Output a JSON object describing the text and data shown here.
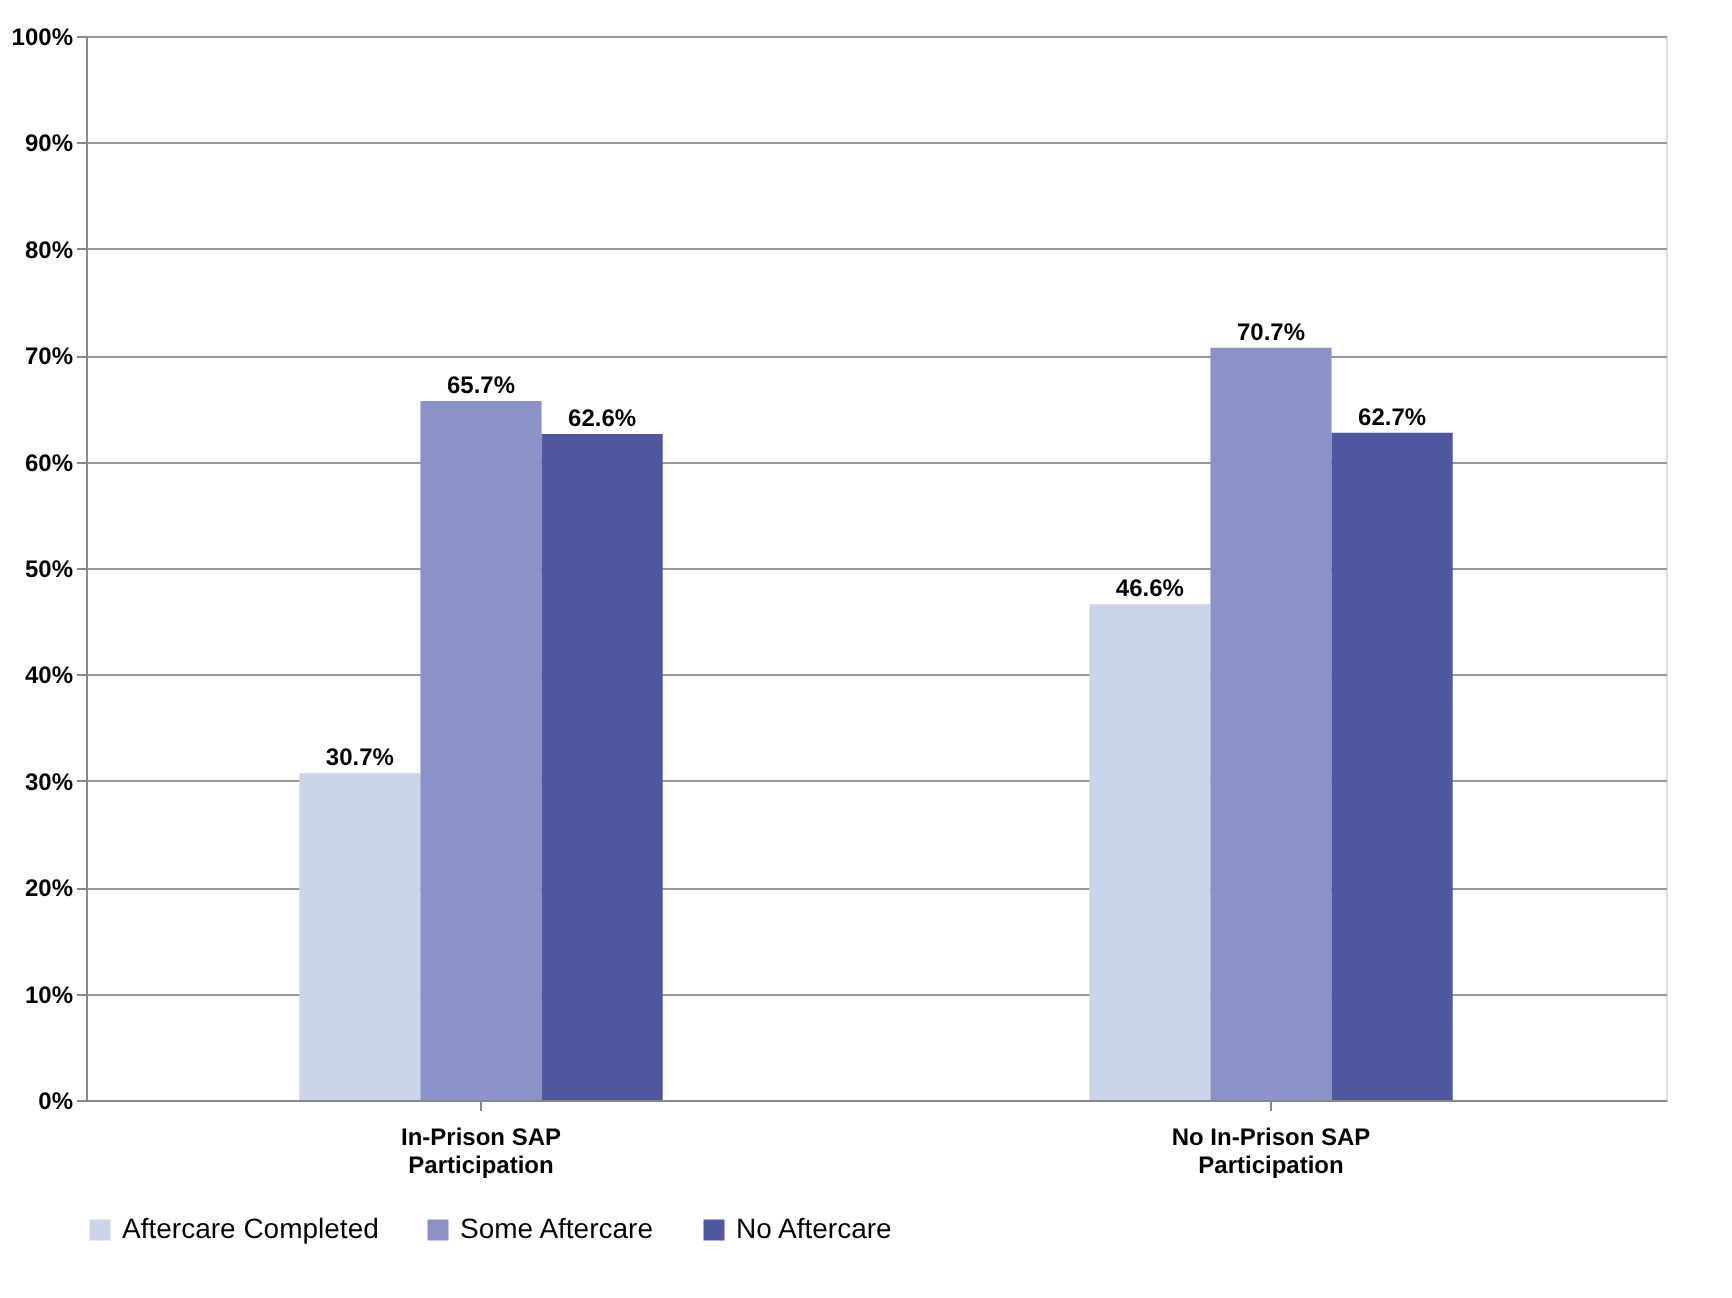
{
  "chart_data": {
    "type": "bar",
    "categories": [
      "In-Prison SAP\nParticipation",
      "No In-Prison SAP\nParticipation"
    ],
    "series": [
      {
        "name": "Aftercare Completed",
        "color": "#c9d5e8",
        "values": [
          30.7,
          46.6
        ],
        "value_labels": [
          "30.7%",
          "46.6%"
        ]
      },
      {
        "name": "Some Aftercare",
        "color": "#8a92c8",
        "values": [
          65.7,
          70.7
        ],
        "value_labels": [
          "65.7%",
          "70.7%"
        ]
      },
      {
        "name": "No Aftercare",
        "color": "#4e57a0",
        "values": [
          62.6,
          62.7
        ],
        "value_labels": [
          "62.6%",
          "62.7%"
        ]
      }
    ],
    "ylim": [
      0,
      100
    ],
    "yticks": [
      {
        "value": 0,
        "label": "0%"
      },
      {
        "value": 10,
        "label": "10%"
      },
      {
        "value": 20,
        "label": "20%"
      },
      {
        "value": 30,
        "label": "30%"
      },
      {
        "value": 40,
        "label": "40%"
      },
      {
        "value": 50,
        "label": "50%"
      },
      {
        "value": 60,
        "label": "60%"
      },
      {
        "value": 70,
        "label": "70%"
      },
      {
        "value": 80,
        "label": "80%"
      },
      {
        "value": 90,
        "label": "90%"
      },
      {
        "value": 100,
        "label": "100%"
      }
    ],
    "grid": "y",
    "legend": "bottom"
  }
}
